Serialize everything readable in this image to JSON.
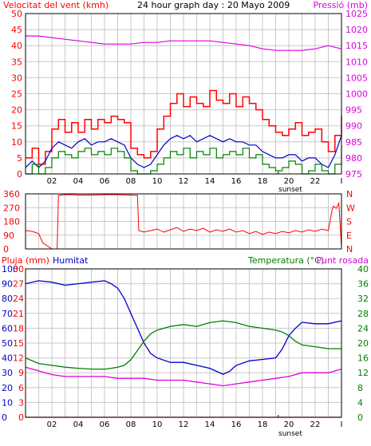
{
  "colors": {
    "background": "#ffffff",
    "border": "#000000",
    "grid": "#c8c8c8",
    "wind_speed": "#ff0000",
    "wind_avg": "#0000c8",
    "wind_gust": "#008000",
    "wind_max": "#ff0000",
    "pressure": "#e000e0",
    "wind_dir": "#ff0000",
    "rain": "#ff0000",
    "humidity": "#0000c8",
    "temperature": "#008000",
    "dew_point": "#e000e0"
  },
  "chart_data": [
    {
      "type": "line",
      "title": "24 hour graph day : 20 Mayo 2009",
      "left_axis_label": "Velocitat del vent (kmh)",
      "right_axis_label": "Pressió (mb)",
      "x_ticks": [
        "02",
        "04",
        "06",
        "08",
        "10",
        "12",
        "14",
        "16",
        "18",
        "20",
        "22",
        "I"
      ],
      "sunset_label": "sunset",
      "sunset_hour": 19.2,
      "y_left": {
        "min": 0,
        "max": 50,
        "ticks": [
          "0",
          "5",
          "10",
          "15",
          "20",
          "25",
          "30",
          "35",
          "40",
          "45",
          "50"
        ]
      },
      "y_right": {
        "min": 975,
        "max": 1025,
        "ticks": [
          "975",
          "980",
          "985",
          "990",
          "995",
          "1000",
          "1005",
          "1010",
          "1015",
          "1020",
          "1025"
        ]
      },
      "series": [
        {
          "key": "wind_max",
          "axis": "left",
          "style": "step",
          "x": [
            0,
            0.5,
            1,
            1.5,
            2,
            2.5,
            3,
            3.5,
            4,
            4.5,
            5,
            5.5,
            6,
            6.5,
            7,
            7.5,
            8,
            8.5,
            9,
            9.5,
            10,
            10.5,
            11,
            11.5,
            12,
            12.5,
            13,
            13.5,
            14,
            14.5,
            15,
            15.5,
            16,
            16.5,
            17,
            17.5,
            18,
            18.5,
            19,
            19.5,
            20,
            20.5,
            21,
            21.5,
            22,
            22.5,
            23,
            23.5,
            24
          ],
          "y": [
            5,
            8,
            3,
            7,
            14,
            17,
            13,
            16,
            13,
            17,
            14,
            17,
            16,
            18,
            17,
            16,
            8,
            6,
            5,
            7,
            14,
            18,
            22,
            25,
            21,
            24,
            22,
            21,
            26,
            23,
            22,
            25,
            21,
            24,
            22,
            20,
            17,
            15,
            13,
            12,
            14,
            16,
            12,
            13,
            14,
            10,
            7,
            12,
            18
          ]
        },
        {
          "key": "wind_avg",
          "axis": "left",
          "style": "line",
          "x": [
            0,
            0.5,
            1,
            1.5,
            2,
            2.5,
            3,
            3.5,
            4,
            4.5,
            5,
            5.5,
            6,
            6.5,
            7,
            7.5,
            8,
            8.5,
            9,
            9.5,
            10,
            10.5,
            11,
            11.5,
            12,
            12.5,
            13,
            13.5,
            14,
            14.5,
            15,
            15.5,
            16,
            16.5,
            17,
            17.5,
            18,
            18.5,
            19,
            19.5,
            20,
            20.5,
            21,
            21.5,
            22,
            22.5,
            23,
            23.5,
            24
          ],
          "y": [
            2,
            4,
            2,
            4,
            8,
            10,
            9,
            8,
            10,
            11,
            9,
            10,
            10,
            11,
            10,
            9,
            5,
            3,
            2,
            3,
            6,
            9,
            11,
            12,
            11,
            12,
            10,
            11,
            12,
            11,
            10,
            11,
            10,
            10,
            9,
            9,
            7,
            6,
            5,
            5,
            6,
            6,
            4,
            5,
            5,
            3,
            2,
            6,
            12
          ]
        },
        {
          "key": "wind_gust",
          "axis": "left",
          "style": "step",
          "x": [
            0,
            0.5,
            1,
            1.5,
            2,
            2.5,
            3,
            3.5,
            4,
            4.5,
            5,
            5.5,
            6,
            6.5,
            7,
            7.5,
            8,
            8.5,
            9,
            9.5,
            10,
            10.5,
            11,
            11.5,
            12,
            12.5,
            13,
            13.5,
            14,
            14.5,
            15,
            15.5,
            16,
            16.5,
            17,
            17.5,
            18,
            18.5,
            19,
            19.5,
            20,
            20.5,
            21,
            21.5,
            22,
            22.5,
            23,
            23.5,
            24
          ],
          "y": [
            0,
            3,
            0,
            2,
            5,
            7,
            6,
            5,
            7,
            8,
            6,
            7,
            6,
            8,
            7,
            5,
            1,
            0,
            0,
            1,
            3,
            5,
            7,
            6,
            8,
            5,
            7,
            6,
            8,
            5,
            6,
            7,
            6,
            8,
            5,
            6,
            3,
            2,
            1,
            2,
            4,
            3,
            0,
            1,
            3,
            1,
            0,
            3,
            9
          ]
        },
        {
          "key": "pressure",
          "axis": "right",
          "style": "line",
          "x": [
            0,
            1,
            2,
            3,
            4,
            5,
            6,
            7,
            8,
            9,
            10,
            11,
            12,
            13,
            14,
            15,
            16,
            17,
            18,
            19,
            20,
            21,
            22,
            23,
            24
          ],
          "y": [
            1018,
            1018,
            1017.5,
            1017,
            1016.5,
            1016,
            1015.5,
            1015.5,
            1015.5,
            1016,
            1016,
            1016.5,
            1016.5,
            1016.5,
            1016.5,
            1016,
            1015.5,
            1015,
            1014,
            1013.5,
            1013.5,
            1013.5,
            1014,
            1015,
            1014
          ]
        }
      ]
    },
    {
      "type": "line",
      "left_ticks": [
        "360",
        "270",
        "180",
        "90",
        "0"
      ],
      "right_ticks": [
        "N",
        "W",
        "S",
        "E",
        "N"
      ],
      "x_ticks": [
        "02",
        "04",
        "06",
        "08",
        "10",
        "12",
        "14",
        "16",
        "18",
        "20",
        "22",
        "I"
      ],
      "y_range": [
        0,
        360
      ],
      "series": [
        {
          "key": "wind_dir",
          "style": "line",
          "x": [
            0,
            0.5,
            1,
            1.2,
            1.3,
            2,
            2.4,
            2.5,
            3,
            3.5,
            4,
            5,
            6,
            7,
            8,
            8.5,
            8.6,
            9,
            9.5,
            10,
            10.5,
            11,
            11.5,
            12,
            12.5,
            13,
            13.5,
            14,
            14.5,
            15,
            15.5,
            16,
            16.5,
            17,
            17.5,
            18,
            18.5,
            19,
            19.5,
            20,
            20.5,
            21,
            21.5,
            22,
            22.5,
            23,
            23.3,
            23.4,
            23.6,
            23.8,
            24
          ],
          "y": [
            120,
            115,
            100,
            60,
            40,
            0,
            0,
            350,
            355,
            355,
            352,
            352,
            355,
            355,
            352,
            350,
            120,
            110,
            120,
            130,
            110,
            125,
            140,
            115,
            130,
            120,
            135,
            110,
            125,
            115,
            130,
            110,
            120,
            100,
            115,
            95,
            110,
            100,
            115,
            105,
            120,
            110,
            125,
            115,
            130,
            120,
            260,
            280,
            265,
            300,
            10
          ]
        }
      ]
    },
    {
      "type": "line",
      "rain_axis_label": "Pluja (mm)",
      "humidity_axis_label": "Humitat",
      "temperature_axis_label": "Temperatura (°C)",
      "dewpoint_axis_label": "Punt rosada",
      "x_ticks": [
        "02",
        "04",
        "06",
        "08",
        "10",
        "12",
        "14",
        "16",
        "18",
        "20",
        "22",
        "I"
      ],
      "sunset_label": "sunset",
      "sunset_hour": 19.2,
      "y_rain": {
        "min": 0,
        "max": 30,
        "ticks": [
          "0",
          "3",
          "6",
          "9",
          "12",
          "15",
          "18",
          "21",
          "24",
          "27",
          "30"
        ]
      },
      "y_humidity": {
        "min": 0,
        "max": 100,
        "ticks": [
          "0",
          "10",
          "20",
          "30",
          "40",
          "50",
          "60",
          "70",
          "80",
          "90",
          "100"
        ]
      },
      "y_temperature": {
        "min": 0,
        "max": 40,
        "ticks": [
          "0",
          "4",
          "8",
          "12",
          "16",
          "20",
          "24",
          "28",
          "32",
          "36",
          "40"
        ]
      },
      "series": [
        {
          "key": "humidity",
          "axis": "humidity",
          "style": "line",
          "x": [
            0,
            1,
            2,
            3,
            4,
            5,
            6,
            6.5,
            7,
            7.5,
            8,
            8.5,
            9,
            9.5,
            10,
            11,
            12,
            13,
            14,
            15,
            15.5,
            16,
            17,
            18,
            19,
            19.5,
            20,
            20.5,
            21,
            22,
            23,
            24
          ],
          "y": [
            90,
            92,
            91,
            89,
            90,
            91,
            92,
            90,
            87,
            80,
            70,
            60,
            50,
            43,
            40,
            37,
            37,
            35,
            33,
            29,
            31,
            35,
            38,
            39,
            40,
            46,
            55,
            60,
            64,
            63,
            63,
            65
          ]
        },
        {
          "key": "temperature",
          "axis": "temperature",
          "style": "line",
          "x": [
            0,
            1,
            2,
            3,
            4,
            5,
            6,
            6.5,
            7,
            7.5,
            8,
            8.5,
            9,
            9.5,
            10,
            11,
            12,
            13,
            14,
            15,
            16,
            17,
            18,
            19,
            19.5,
            20,
            20.5,
            21,
            22,
            23,
            24
          ],
          "y": [
            16,
            14.5,
            14,
            13.5,
            13.2,
            13,
            13,
            13.2,
            13.5,
            14,
            15.5,
            18,
            20.5,
            22.5,
            23.5,
            24.5,
            25,
            24.5,
            25.5,
            26,
            25.5,
            24.5,
            24,
            23.5,
            23,
            22,
            20.5,
            19.5,
            19,
            18.5,
            18.5
          ]
        },
        {
          "key": "dew_point",
          "axis": "temperature",
          "style": "line",
          "x": [
            0,
            1,
            2,
            3,
            4,
            5,
            6,
            7,
            8,
            9,
            10,
            11,
            12,
            13,
            14,
            15,
            16,
            17,
            18,
            19,
            20,
            21,
            22,
            23,
            24
          ],
          "y": [
            13.5,
            12.5,
            11.5,
            11,
            11,
            11,
            11,
            10.5,
            10.5,
            10.5,
            10,
            10,
            10,
            9.5,
            9,
            8.5,
            9,
            9.5,
            10,
            10.5,
            11,
            12,
            12,
            12,
            13
          ]
        },
        {
          "key": "rain",
          "axis": "rain",
          "style": "line",
          "x": [
            0,
            24
          ],
          "y": [
            0,
            0
          ]
        }
      ]
    }
  ]
}
